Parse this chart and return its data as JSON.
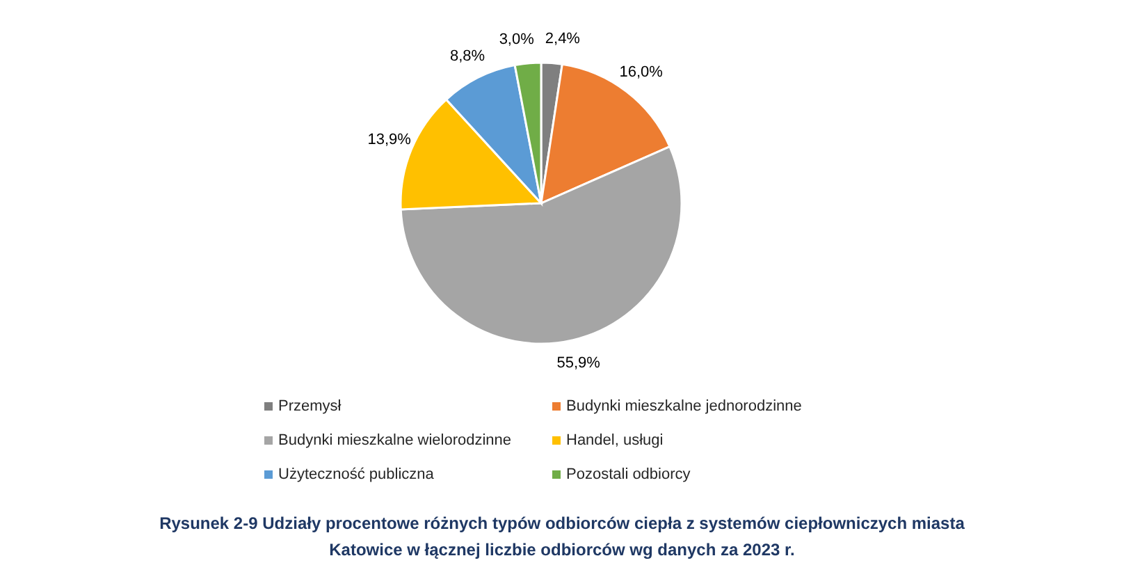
{
  "chart_data": {
    "type": "pie",
    "title": "Rysunek 2-9 Udziały procentowe różnych typów odbiorców ciepła z systemów ciepłowniczych miasta Katowice w łącznej liczbie odbiorców wg danych za 2023 r.",
    "categories": [
      "Przemysł",
      "Budynki mieszkalne jednorodzinne",
      "Budynki mieszkalne wielorodzinne",
      "Handel, usługi",
      "Użyteczność publiczna",
      "Pozostali odbiorcy"
    ],
    "values": [
      2.4,
      16.0,
      55.9,
      13.9,
      8.8,
      3.0
    ],
    "value_labels": [
      "2,4%",
      "16,0%",
      "55,9%",
      "13,9%",
      "8,8%",
      "3,0%"
    ],
    "colors": [
      "#7f7f7f",
      "#ed7d31",
      "#a5a5a5",
      "#ffc000",
      "#5b9bd5",
      "#70ad47"
    ],
    "legend": "bottom"
  }
}
